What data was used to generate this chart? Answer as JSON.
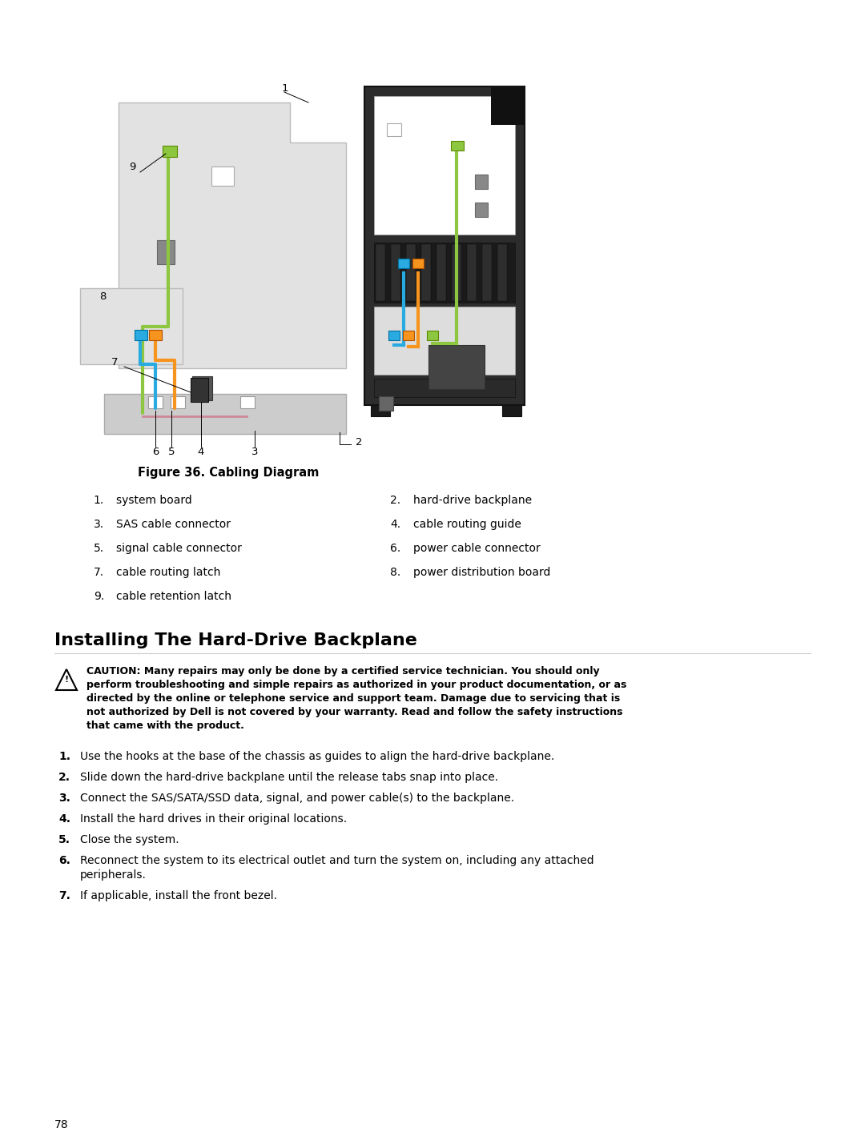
{
  "title": "Installing The Hard-Drive Backplane",
  "figure_caption": "Figure 36. Cabling Diagram",
  "legend_items_left": [
    [
      "1.",
      "system board"
    ],
    [
      "3.",
      "SAS cable connector"
    ],
    [
      "5.",
      "signal cable connector"
    ],
    [
      "7.",
      "cable routing latch"
    ],
    [
      "9.",
      "cable retention latch"
    ]
  ],
  "legend_items_right": [
    [
      "2.",
      "hard-drive backplane"
    ],
    [
      "4.",
      "cable routing guide"
    ],
    [
      "6.",
      "power cable connector"
    ],
    [
      "8.",
      "power distribution board"
    ]
  ],
  "caution_lines": [
    "CAUTION: Many repairs may only be done by a certified service technician. You should only",
    "perform troubleshooting and simple repairs as authorized in your product documentation, or as",
    "directed by the online or telephone service and support team. Damage due to servicing that is",
    "not authorized by Dell is not covered by your warranty. Read and follow the safety instructions",
    "that came with the product."
  ],
  "steps": [
    [
      1,
      "Use the hooks at the base of the chassis as guides to align the hard-drive backplane."
    ],
    [
      2,
      "Slide down the hard-drive backplane until the release tabs snap into place."
    ],
    [
      3,
      "Connect the SAS/SATA/SSD data, signal, and power cable(s) to the backplane."
    ],
    [
      4,
      "Install the hard drives in their original locations."
    ],
    [
      5,
      "Close the system."
    ],
    [
      6,
      "Reconnect the system to its electrical outlet and turn the system on, including any attached\nperipherals."
    ],
    [
      7,
      "If applicable, install the front bezel."
    ]
  ],
  "page_number": "78",
  "bg_color": "#ffffff",
  "cable_blue": "#29ABE2",
  "cable_orange": "#F7941D",
  "cable_green": "#8DC63F",
  "cable_pink": "#CC8899",
  "diagram_bg_light": "#E8E8E8",
  "diagram_bg_dark": "#2A2A2A",
  "diagram_gray": "#777777"
}
